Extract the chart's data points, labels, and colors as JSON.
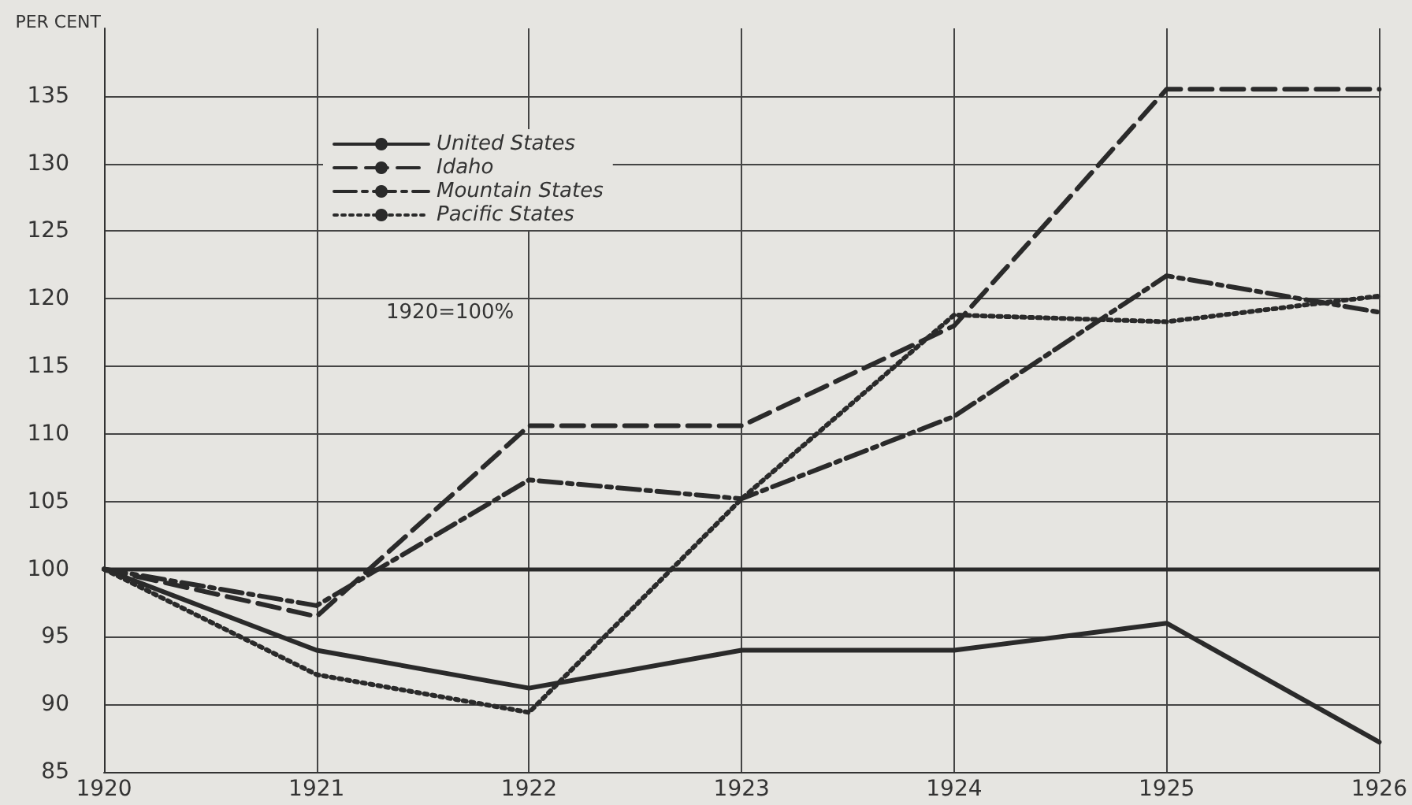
{
  "chart_data": {
    "type": "line",
    "ylabel": "PER CENT",
    "x": [
      1920,
      1921,
      1922,
      1923,
      1924,
      1925,
      1926
    ],
    "xlim": [
      1920,
      1926
    ],
    "xticks": [
      1920,
      1921,
      1922,
      1923,
      1924,
      1925,
      1926
    ],
    "ylim": [
      85,
      140
    ],
    "yticks": [
      85,
      90,
      95,
      100,
      105,
      110,
      115,
      120,
      125,
      130,
      135
    ],
    "grid": true,
    "legend": "top left",
    "marker": "none",
    "annotations": [
      "1920=100%"
    ],
    "ref_lines": [
      {
        "axis": "y",
        "value": 100,
        "color": "#2a2a2a"
      }
    ],
    "series": [
      {
        "name": "United States",
        "color": "#2a2a2a",
        "line_style": "solid",
        "values": [
          100,
          94,
          91.2,
          94,
          94,
          96,
          87.2
        ]
      },
      {
        "name": "Idaho",
        "color": "#2a2a2a",
        "line_style": "dashed",
        "values": [
          100,
          96.5,
          110.6,
          110.6,
          118,
          135.5,
          135.5
        ]
      },
      {
        "name": "Mountain States",
        "color": "#2a2a2a",
        "line_style": "dashdot",
        "values": [
          100,
          97.3,
          106.6,
          105.2,
          111.3,
          121.7,
          119
        ]
      },
      {
        "name": "Pacific States",
        "color": "#2a2a2a",
        "line_style": "dotted",
        "values": [
          100,
          92.2,
          89.4,
          105.2,
          118.8,
          118.3,
          120.2
        ]
      }
    ]
  }
}
